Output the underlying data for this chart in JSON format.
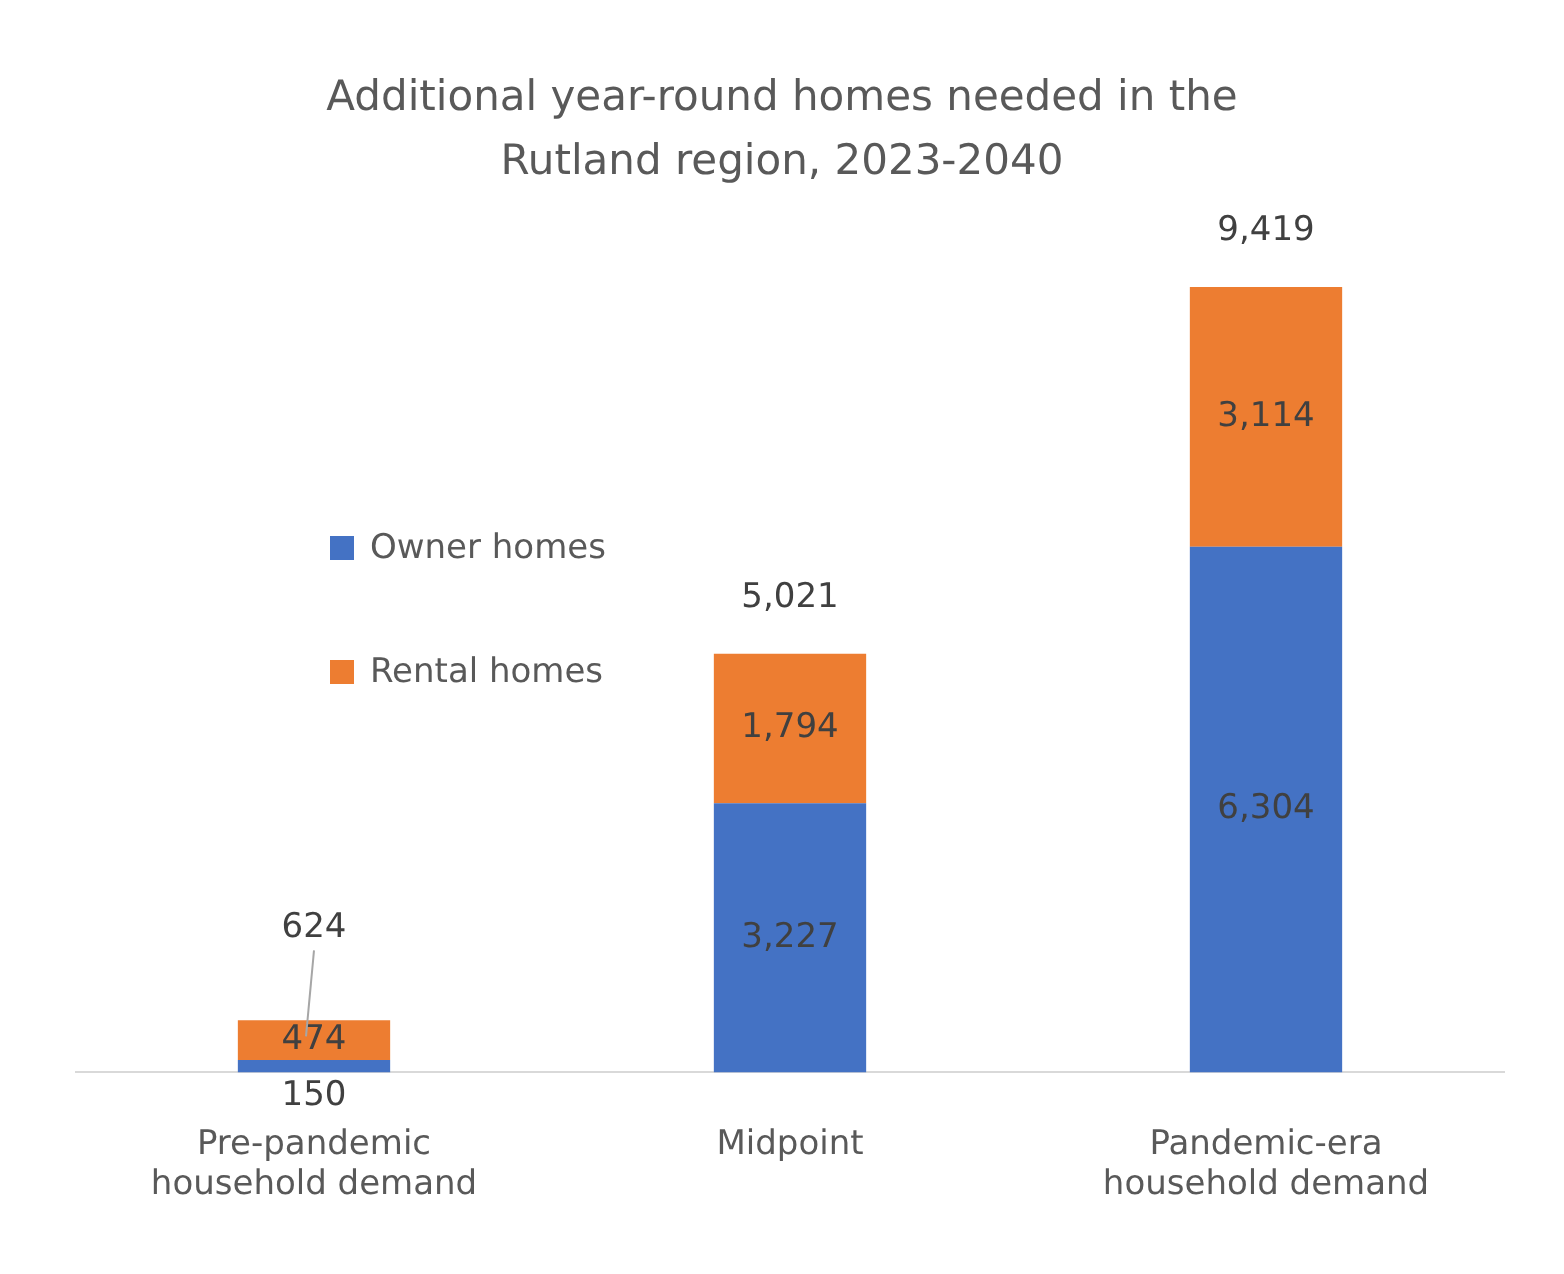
{
  "chart_data": {
    "type": "bar",
    "title": "Additional year-round homes needed in the Rutland region, 2023-2040",
    "categories": [
      "Pre-pandemic household demand",
      "Midpoint",
      "Pandemic-era household demand"
    ],
    "series": [
      {
        "name": "Owner homes",
        "color": "#4472c4",
        "values": [
          150,
          3227,
          6304
        ],
        "value_labels": [
          "150",
          "3,227",
          "6,304"
        ]
      },
      {
        "name": "Rental homes",
        "color": "#ed7d31",
        "values": [
          474,
          1794,
          3114
        ],
        "value_labels": [
          "474",
          "1,794",
          "3,114"
        ]
      }
    ],
    "stacked": true,
    "totals": [
      "624",
      "5,021",
      "9,419"
    ],
    "legend": "left",
    "grid": false,
    "tick_labels": "x"
  }
}
